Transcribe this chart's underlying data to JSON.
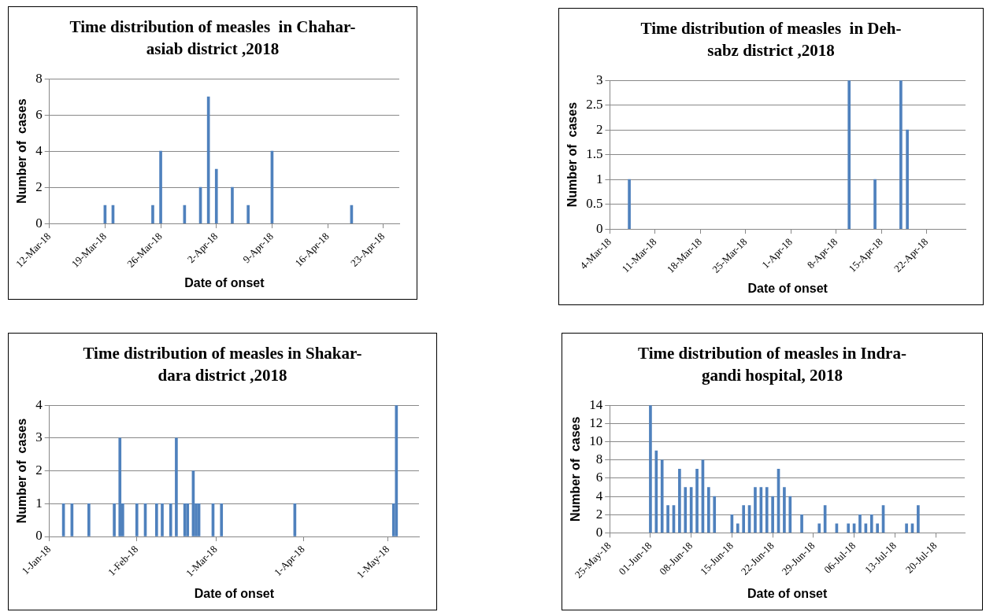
{
  "chart_data": [
    {
      "type": "bar",
      "title": "Time distribution of measles  in Chahar-asiab district ,2018",
      "xlabel": "Date of onset",
      "ylabel": "Number of  cases",
      "grid": "y",
      "x": [
        "2018-03-19",
        "2018-03-20",
        "2018-03-25",
        "2018-03-26",
        "2018-03-29",
        "2018-03-31",
        "2018-04-01",
        "2018-04-02",
        "2018-04-04",
        "2018-04-06",
        "2018-04-09",
        "2018-04-19"
      ],
      "series": [
        {
          "color": "#4f81bd",
          "values": [
            1,
            1,
            1,
            4,
            1,
            2,
            7,
            3,
            2,
            1,
            4,
            1
          ]
        }
      ],
      "xlim": [
        "2018-03-12",
        "2018-04-25"
      ],
      "xticks": [
        {
          "value": "2018-03-12",
          "label": "12-Mar-18"
        },
        {
          "value": "2018-03-19",
          "label": "19-Mar-18"
        },
        {
          "value": "2018-03-26",
          "label": "26-Mar-18"
        },
        {
          "value": "2018-04-02",
          "label": "2-Apr-18"
        },
        {
          "value": "2018-04-09",
          "label": "9-Apr-18"
        },
        {
          "value": "2018-04-16",
          "label": "16-Apr-18"
        },
        {
          "value": "2018-04-23",
          "label": "23-Apr-18"
        }
      ],
      "ylim": [
        0,
        8
      ],
      "yticks": [
        0,
        2,
        4,
        6,
        8
      ]
    },
    {
      "type": "bar",
      "title": "Time distribution of measles  in Deh-sabz district ,2018",
      "xlabel": "Date of onset",
      "ylabel": "Number of  cases",
      "grid": "y",
      "x": [
        "2018-03-07",
        "2018-04-10",
        "2018-04-14",
        "2018-04-18",
        "2018-04-19"
      ],
      "series": [
        {
          "color": "#4f81bd",
          "values": [
            1,
            3,
            1,
            3,
            2
          ]
        }
      ],
      "xlim": [
        "2018-03-04",
        "2018-04-28"
      ],
      "xticks": [
        {
          "value": "2018-03-04",
          "label": "4-Mar-18"
        },
        {
          "value": "2018-03-11",
          "label": "11-Mar-18"
        },
        {
          "value": "2018-03-18",
          "label": "18-Mar-18"
        },
        {
          "value": "2018-03-25",
          "label": "25-Mar-18"
        },
        {
          "value": "2018-04-01",
          "label": "1-Apr-18"
        },
        {
          "value": "2018-04-08",
          "label": "8-Apr-18"
        },
        {
          "value": "2018-04-15",
          "label": "15-Apr-18"
        },
        {
          "value": "2018-04-22",
          "label": "22-Apr-18"
        }
      ],
      "ylim": [
        0,
        3
      ],
      "yticks": [
        0,
        0.5,
        1,
        1.5,
        2,
        2.5,
        3
      ]
    },
    {
      "type": "bar",
      "title": "Time distribution of measles in Shakar-dara district ,2018",
      "xlabel": "Date of onset",
      "ylabel": "Number of  cases",
      "grid": "y",
      "x": [
        "2018-01-06",
        "2018-01-09",
        "2018-01-15",
        "2018-01-24",
        "2018-01-26",
        "2018-01-27",
        "2018-02-01",
        "2018-02-04",
        "2018-02-08",
        "2018-02-10",
        "2018-02-13",
        "2018-02-15",
        "2018-02-18",
        "2018-02-19",
        "2018-02-21",
        "2018-02-22",
        "2018-02-23",
        "2018-02-28",
        "2018-03-03",
        "2018-03-29",
        "2018-05-03",
        "2018-05-04"
      ],
      "series": [
        {
          "color": "#4f81bd",
          "values": [
            1,
            1,
            1,
            1,
            3,
            1,
            1,
            1,
            1,
            1,
            1,
            3,
            1,
            1,
            2,
            1,
            1,
            1,
            1,
            1,
            1,
            4
          ]
        }
      ],
      "xlim": [
        "2018-01-01",
        "2018-05-12"
      ],
      "xticks": [
        {
          "value": "2018-01-01",
          "label": "1-Jan-18"
        },
        {
          "value": "2018-02-01",
          "label": "1-Feb-18"
        },
        {
          "value": "2018-03-01",
          "label": "1-Mar-18"
        },
        {
          "value": "2018-04-01",
          "label": "1-Apr-18"
        },
        {
          "value": "2018-05-01",
          "label": "1-May-18"
        }
      ],
      "ylim": [
        0,
        4
      ],
      "yticks": [
        0,
        1,
        2,
        3,
        4
      ]
    },
    {
      "type": "bar",
      "title": "Time distribution of measles in Indra-gandi hospital, 2018",
      "xlabel": "Date of onset",
      "ylabel": "Number of  cases",
      "grid": "y",
      "x": [
        "2018-06-01",
        "2018-06-02",
        "2018-06-03",
        "2018-06-04",
        "2018-06-05",
        "2018-06-06",
        "2018-06-07",
        "2018-06-08",
        "2018-06-09",
        "2018-06-10",
        "2018-06-11",
        "2018-06-12",
        "2018-06-15",
        "2018-06-16",
        "2018-06-17",
        "2018-06-18",
        "2018-06-19",
        "2018-06-20",
        "2018-06-21",
        "2018-06-22",
        "2018-06-23",
        "2018-06-24",
        "2018-06-25",
        "2018-06-27",
        "2018-06-30",
        "2018-07-01",
        "2018-07-03",
        "2018-07-05",
        "2018-07-06",
        "2018-07-07",
        "2018-07-08",
        "2018-07-09",
        "2018-07-10",
        "2018-07-11",
        "2018-07-15",
        "2018-07-16",
        "2018-07-17"
      ],
      "series": [
        {
          "color": "#4f81bd",
          "values": [
            14,
            9,
            8,
            3,
            3,
            7,
            5,
            5,
            7,
            8,
            5,
            4,
            2,
            1,
            3,
            3,
            5,
            5,
            5,
            4,
            7,
            5,
            4,
            2,
            1,
            3,
            1,
            1,
            1,
            2,
            1,
            2,
            1,
            3,
            1,
            1,
            3
          ]
        }
      ],
      "xlim": [
        "2018-05-25",
        "2018-07-25"
      ],
      "xticks": [
        {
          "value": "2018-05-25",
          "label": "25-May-18"
        },
        {
          "value": "2018-06-01",
          "label": "01-Jun-18"
        },
        {
          "value": "2018-06-08",
          "label": "08-Jun-18"
        },
        {
          "value": "2018-06-15",
          "label": "15-Jun-18"
        },
        {
          "value": "2018-06-22",
          "label": "22-Jun-18"
        },
        {
          "value": "2018-06-29",
          "label": "29-Jun-18"
        },
        {
          "value": "2018-07-06",
          "label": "06-Jul-18"
        },
        {
          "value": "2018-07-13",
          "label": "13-Jul-18"
        },
        {
          "value": "2018-07-20",
          "label": "20-Jul-18"
        }
      ],
      "ylim": [
        0,
        14
      ],
      "yticks": [
        0,
        2,
        4,
        6,
        8,
        10,
        12,
        14
      ]
    }
  ]
}
